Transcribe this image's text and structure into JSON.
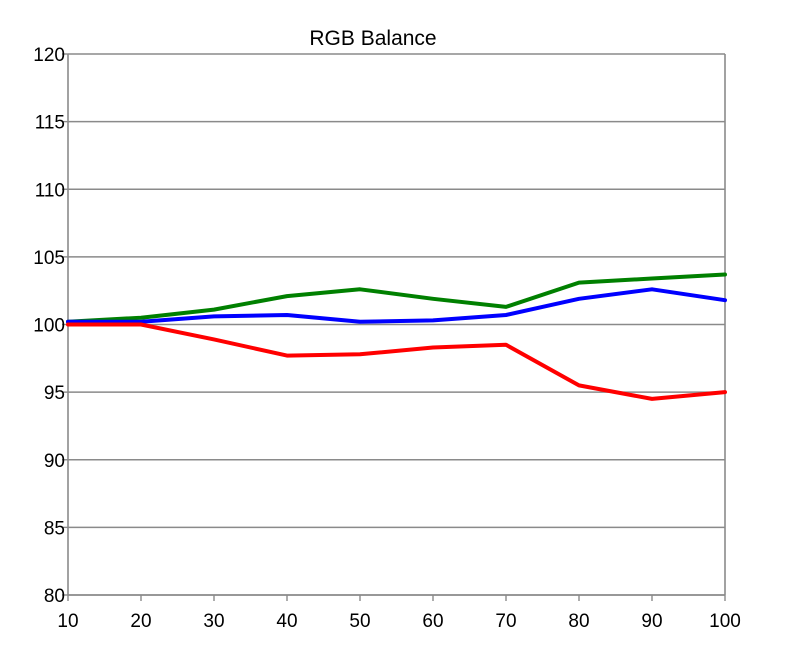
{
  "chart_data": {
    "type": "line",
    "title": "RGB Balance",
    "xlabel": "",
    "ylabel": "",
    "x": [
      10,
      20,
      30,
      40,
      50,
      60,
      70,
      80,
      90,
      100
    ],
    "xlim": [
      10,
      100
    ],
    "ylim": [
      80,
      120
    ],
    "x_ticks": [
      "10",
      "20",
      "30",
      "40",
      "50",
      "60",
      "70",
      "80",
      "90",
      "100"
    ],
    "y_ticks": [
      "80",
      "85",
      "90",
      "95",
      "100",
      "105",
      "110",
      "115",
      "120"
    ],
    "grid": "horizontal",
    "legend": "none",
    "series": [
      {
        "color": "#008000",
        "values": [
          100.2,
          100.5,
          101.1,
          102.1,
          102.6,
          101.9,
          101.3,
          103.1,
          103.4,
          103.7
        ]
      },
      {
        "color": "#0000ff",
        "values": [
          100.2,
          100.2,
          100.6,
          100.7,
          100.2,
          100.3,
          100.7,
          101.9,
          102.6,
          101.8
        ]
      },
      {
        "color": "#ff0000",
        "values": [
          100.0,
          100.0,
          98.9,
          97.7,
          97.8,
          98.3,
          98.5,
          95.5,
          94.5,
          95.0
        ]
      }
    ]
  }
}
